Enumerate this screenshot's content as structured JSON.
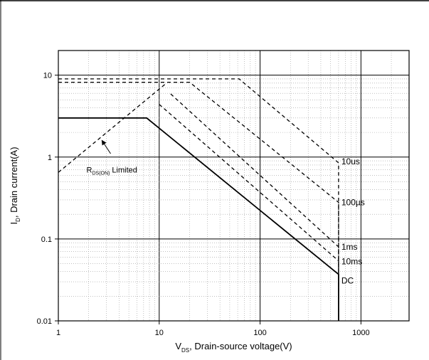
{
  "chart_data": {
    "type": "line",
    "xscale": "log",
    "yscale": "log",
    "xlim": [
      1,
      3000
    ],
    "ylim": [
      0.01,
      20
    ],
    "grid": true,
    "xlabel": {
      "main": "V",
      "sub": "DS",
      "rest": ", Drain-source voltage(V)"
    },
    "ylabel": {
      "main": "I",
      "sub": "D",
      "rest": ", Drain current(A)"
    },
    "xticks": [
      {
        "value": 1,
        "label": "1"
      },
      {
        "value": 10,
        "label": "10"
      },
      {
        "value": 100,
        "label": "100"
      },
      {
        "value": 1000,
        "label": "1000"
      }
    ],
    "yticks": [
      {
        "value": 0.01,
        "label": "0.01"
      },
      {
        "value": 0.1,
        "label": "0.1"
      },
      {
        "value": 1,
        "label": "1"
      },
      {
        "value": 10,
        "label": "10"
      }
    ],
    "series": [
      {
        "name": "10us",
        "style": "dashed",
        "x": [
          1,
          62,
          600,
          600
        ],
        "y": [
          9,
          9,
          0.85,
          0.01
        ],
        "label_at": [
          640,
          0.88
        ]
      },
      {
        "name": "100µs",
        "style": "dashed",
        "x": [
          1,
          20,
          600,
          600
        ],
        "y": [
          8.2,
          8.2,
          0.28,
          0.01
        ],
        "label_at": [
          640,
          0.28
        ]
      },
      {
        "name": "1ms",
        "style": "dashed",
        "x": [
          13,
          600,
          600
        ],
        "y": [
          5.9,
          0.08,
          0.01
        ],
        "label_at": [
          640,
          0.08
        ]
      },
      {
        "name": "10ms",
        "style": "dashed",
        "x": [
          10,
          600,
          600
        ],
        "y": [
          4.4,
          0.054,
          0.01
        ],
        "label_at": [
          640,
          0.053
        ]
      },
      {
        "name": "DC",
        "style": "solid",
        "x": [
          1,
          7.5,
          600,
          600
        ],
        "y": [
          3,
          3,
          0.037,
          0.01
        ],
        "label_at": [
          640,
          0.031
        ]
      },
      {
        "name": "",
        "style": "dashed",
        "x": [
          1,
          11.5
        ],
        "y": [
          0.65,
          7.8
        ]
      }
    ],
    "annotation": {
      "main": "R",
      "sub": "DS(ON)",
      "rest": " Limited",
      "text_at": [
        1.9,
        0.7
      ],
      "arrow_from": [
        3.3,
        1.1
      ],
      "arrow_to": [
        2.7,
        1.6
      ]
    }
  }
}
